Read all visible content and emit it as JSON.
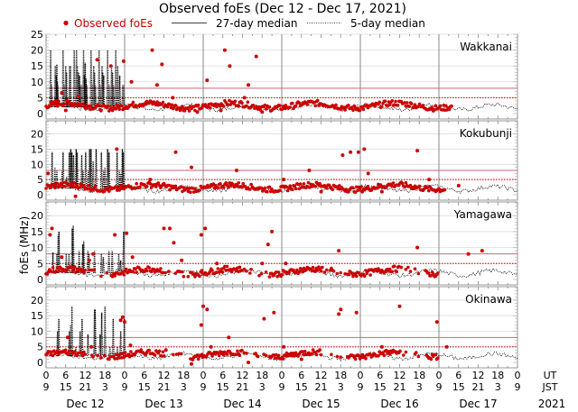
{
  "chart_data": {
    "type": "scatter",
    "title": "Observed foEs (Dec 12 - Dec 17, 2021)",
    "ylabel": "foEs (MHz)",
    "ylim": [
      0,
      25
    ],
    "yticks_top_panel": [
      "0",
      "5",
      "10",
      "15",
      "20",
      "25"
    ],
    "yticks_other_panels": [
      "0",
      "5",
      "10",
      "15",
      "20"
    ],
    "legend": {
      "placement": "top",
      "entries": [
        {
          "label": "Observed foEs",
          "style": "red-dots"
        },
        {
          "label": "27-day median",
          "style": "solid-line"
        },
        {
          "label": "5-day median",
          "style": "dotted-line"
        }
      ]
    },
    "x_axis": {
      "ut_label": "UT",
      "jst_label": "JST",
      "year_label": "2021",
      "ut_ticks": [
        "0",
        "6",
        "12",
        "18"
      ],
      "jst_ticks": [
        "9",
        "15",
        "21",
        "3"
      ],
      "final_ut": "0",
      "final_jst": "9",
      "days": [
        "Dec 12",
        "Dec 13",
        "Dec 14",
        "Dec 15",
        "Dec 16",
        "Dec 17"
      ]
    },
    "colors": {
      "observed": "#cc0000",
      "median27": "#cc6677",
      "median5_ref": "#cc0000",
      "grid": "#d8d8d8"
    },
    "panels": [
      {
        "station": "Wakkanai",
        "median27_level": 8,
        "median5_level": 5,
        "observed_spikes": [
          [
            0.2,
            2.5
          ],
          [
            0.5,
            4
          ],
          [
            0.8,
            6.5
          ],
          [
            1.0,
            1
          ],
          [
            1.5,
            3
          ],
          [
            1.65,
            5.5
          ],
          [
            2.6,
            17
          ],
          [
            3.3,
            15
          ],
          [
            3.95,
            16.5
          ],
          [
            4.35,
            10
          ],
          [
            5.1,
            3.5
          ],
          [
            5.4,
            20
          ],
          [
            5.65,
            9
          ],
          [
            5.9,
            15.5
          ],
          [
            6.45,
            5
          ],
          [
            7.0,
            1
          ],
          [
            7.7,
            0.5
          ],
          [
            8.2,
            10.5
          ],
          [
            8.9,
            1
          ],
          [
            9.1,
            20
          ],
          [
            9.35,
            15
          ],
          [
            10.1,
            5
          ],
          [
            10.3,
            9
          ],
          [
            10.7,
            18
          ],
          [
            11.0,
            0.5
          ]
        ],
        "dotted_peaks": [
          [
            1.4,
            20
          ],
          [
            1.7,
            9
          ],
          [
            2.8,
            15
          ],
          [
            3.1,
            12
          ],
          [
            3.3,
            15.5
          ],
          [
            3.45,
            10
          ],
          [
            3.6,
            9
          ],
          [
            5.2,
            20
          ],
          [
            5.55,
            9
          ],
          [
            6.0,
            15
          ],
          [
            6.25,
            13
          ],
          [
            6.45,
            5
          ],
          [
            7.2,
            15
          ],
          [
            7.45,
            15
          ],
          [
            8.6,
            20
          ],
          [
            9.3,
            20
          ],
          [
            9.55,
            15
          ],
          [
            9.9,
            13
          ],
          [
            10.2,
            12
          ],
          [
            10.5,
            9
          ],
          [
            10.9,
            9
          ],
          [
            11.45,
            20
          ],
          [
            11.7,
            12
          ],
          [
            11.95,
            16
          ],
          [
            12.2,
            11
          ],
          [
            12.45,
            9
          ],
          [
            13.75,
            20
          ],
          [
            14.2,
            9
          ],
          [
            14.55,
            15
          ],
          [
            14.8,
            13
          ],
          [
            15.1,
            9
          ],
          [
            16.2,
            20
          ],
          [
            16.5,
            9
          ],
          [
            17.1,
            15
          ],
          [
            17.3,
            13
          ],
          [
            17.6,
            12
          ],
          [
            18.8,
            20
          ],
          [
            19.3,
            9
          ],
          [
            20.0,
            15
          ],
          [
            20.3,
            13
          ],
          [
            20.6,
            9
          ],
          [
            21.3,
            20
          ],
          [
            21.9,
            15
          ],
          [
            22.5,
            12
          ],
          [
            23.4,
            9
          ],
          [
            23.7,
            9
          ]
        ]
      },
      {
        "station": "Kokubunji",
        "median27_level": 8,
        "median5_level": 5,
        "observed_spikes": [
          [
            0.1,
            7
          ],
          [
            1.5,
            -0.5
          ],
          [
            3.6,
            15
          ],
          [
            5.3,
            5
          ],
          [
            6.6,
            14
          ],
          [
            7.4,
            9
          ],
          [
            9.7,
            8
          ],
          [
            12.1,
            5
          ],
          [
            13.4,
            8
          ],
          [
            14.0,
            1
          ],
          [
            15.1,
            13
          ],
          [
            15.5,
            14
          ],
          [
            15.9,
            14
          ],
          [
            16.2,
            15
          ],
          [
            16.4,
            7
          ],
          [
            17.1,
            1
          ],
          [
            18.9,
            14.5
          ],
          [
            19.5,
            5
          ],
          [
            21.0,
            3
          ]
        ],
        "dotted_peaks": [
          [
            1.85,
            14
          ],
          [
            2.7,
            9
          ],
          [
            3.3,
            8
          ],
          [
            4.9,
            8
          ],
          [
            5.2,
            14
          ],
          [
            6.3,
            6
          ],
          [
            7.1,
            14
          ],
          [
            7.55,
            15
          ],
          [
            7.9,
            14
          ],
          [
            8.4,
            13
          ],
          [
            9.2,
            15
          ],
          [
            9.5,
            14
          ],
          [
            10.9,
            13
          ],
          [
            11.3,
            8
          ],
          [
            12.1,
            14
          ],
          [
            12.9,
            8
          ],
          [
            13.3,
            15
          ],
          [
            13.75,
            15
          ],
          [
            14.4,
            11
          ],
          [
            15.3,
            15
          ],
          [
            16.9,
            14
          ],
          [
            17.6,
            8
          ],
          [
            18.0,
            9
          ],
          [
            18.8,
            15
          ],
          [
            19.25,
            14
          ],
          [
            21.7,
            14
          ],
          [
            22.4,
            8
          ],
          [
            22.9,
            7
          ],
          [
            23.3,
            15
          ],
          [
            23.6,
            14
          ]
        ]
      },
      {
        "station": "Yamagawa",
        "median27_level": 8,
        "median5_level": 5,
        "observed_spikes": [
          [
            0.2,
            14
          ],
          [
            0.3,
            16
          ],
          [
            0.8,
            7
          ],
          [
            2.2,
            6
          ],
          [
            2.4,
            8
          ],
          [
            3.5,
            14
          ],
          [
            4.1,
            14.5
          ],
          [
            4.4,
            7
          ],
          [
            6.0,
            16
          ],
          [
            6.3,
            16
          ],
          [
            6.5,
            11.5
          ],
          [
            6.9,
            6
          ],
          [
            7.9,
            14
          ],
          [
            8.1,
            16
          ],
          [
            8.7,
            5
          ],
          [
            11.0,
            5
          ],
          [
            11.3,
            11
          ],
          [
            11.5,
            15
          ],
          [
            12.2,
            5
          ],
          [
            14.9,
            9
          ],
          [
            18.9,
            10
          ],
          [
            21.5,
            8
          ],
          [
            22.2,
            9
          ]
        ],
        "dotted_peaks": [
          [
            2.1,
            8.5
          ],
          [
            3.3,
            8
          ],
          [
            3.7,
            14
          ],
          [
            3.95,
            15
          ],
          [
            6.15,
            8
          ],
          [
            7.0,
            8
          ],
          [
            8.0,
            16
          ],
          [
            8.3,
            17
          ],
          [
            10.1,
            9
          ],
          [
            11.2,
            11
          ],
          [
            11.5,
            12
          ],
          [
            12.8,
            9
          ],
          [
            13.1,
            8
          ],
          [
            14.8,
            9
          ],
          [
            16.9,
            8
          ],
          [
            17.5,
            7
          ],
          [
            19.2,
            9
          ],
          [
            20.2,
            9
          ],
          [
            22.2,
            8
          ],
          [
            22.8,
            6
          ],
          [
            23.7,
            15
          ]
        ]
      },
      {
        "station": "Okinawa",
        "median27_level": 8,
        "median5_level": 5,
        "observed_spikes": [
          [
            1.1,
            8
          ],
          [
            2.3,
            5
          ],
          [
            3.8,
            13.5
          ],
          [
            3.9,
            14.5
          ],
          [
            4.0,
            13
          ],
          [
            4.3,
            5.5
          ],
          [
            6.1,
            4
          ],
          [
            7.4,
            -0.5
          ],
          [
            7.9,
            12
          ],
          [
            8.0,
            18
          ],
          [
            8.2,
            17
          ],
          [
            8.4,
            5
          ],
          [
            9.3,
            8
          ],
          [
            10.3,
            0
          ],
          [
            11.1,
            14
          ],
          [
            11.6,
            16
          ],
          [
            12.1,
            5
          ],
          [
            13.0,
            1
          ],
          [
            14.9,
            15.5
          ],
          [
            15.0,
            17
          ],
          [
            15.8,
            16
          ],
          [
            17.1,
            5
          ],
          [
            18.0,
            18
          ],
          [
            19.9,
            13
          ],
          [
            20.4,
            5
          ]
        ],
        "dotted_peaks": [
          [
            3.5,
            10
          ],
          [
            3.9,
            14
          ],
          [
            7.1,
            10
          ],
          [
            7.5,
            12
          ],
          [
            7.9,
            18
          ],
          [
            9.1,
            5
          ],
          [
            10.4,
            10
          ],
          [
            11.0,
            14
          ],
          [
            12.8,
            9
          ],
          [
            14.8,
            17
          ],
          [
            15.0,
            17
          ],
          [
            16.5,
            9
          ],
          [
            17.0,
            16
          ],
          [
            18.0,
            18
          ],
          [
            19.5,
            5
          ],
          [
            20.5,
            14
          ],
          [
            21.8,
            5
          ],
          [
            22.8,
            10
          ],
          [
            23.9,
            14
          ]
        ]
      }
    ]
  }
}
